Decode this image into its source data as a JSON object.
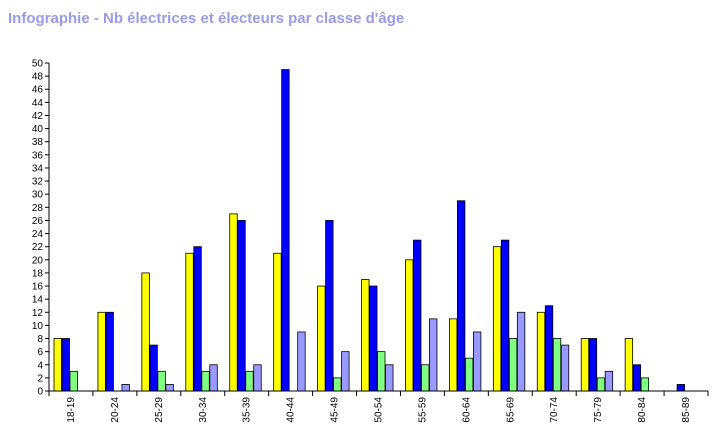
{
  "chart_data": {
    "type": "bar",
    "title": "Infographie - Nb électrices et électeurs par classe d'âge",
    "categories": [
      "18-19",
      "20-24",
      "25-29",
      "30-34",
      "35-39",
      "40-44",
      "45-49",
      "50-54",
      "55-59",
      "60-64",
      "65-69",
      "70-74",
      "75-79",
      "80-84",
      "85-89"
    ],
    "series": [
      {
        "color": "#ffff00",
        "values": [
          8,
          12,
          18,
          21,
          27,
          21,
          16,
          17,
          20,
          11,
          22,
          12,
          8,
          8,
          0
        ]
      },
      {
        "color": "#0000ff",
        "values": [
          8,
          12,
          7,
          22,
          26,
          49,
          26,
          16,
          23,
          29,
          23,
          13,
          8,
          4,
          1
        ]
      },
      {
        "color": "#80ff80",
        "values": [
          3,
          0,
          3,
          3,
          3,
          0,
          2,
          6,
          4,
          5,
          8,
          8,
          2,
          2,
          0
        ]
      },
      {
        "color": "#9999ff",
        "values": [
          0,
          1,
          1,
          4,
          4,
          9,
          6,
          4,
          11,
          9,
          12,
          7,
          3,
          0,
          0
        ]
      }
    ],
    "ylim": [
      0,
      50
    ],
    "ytick_step": 2,
    "xlabel": "",
    "ylabel": "",
    "grid": false,
    "legend": "none"
  }
}
